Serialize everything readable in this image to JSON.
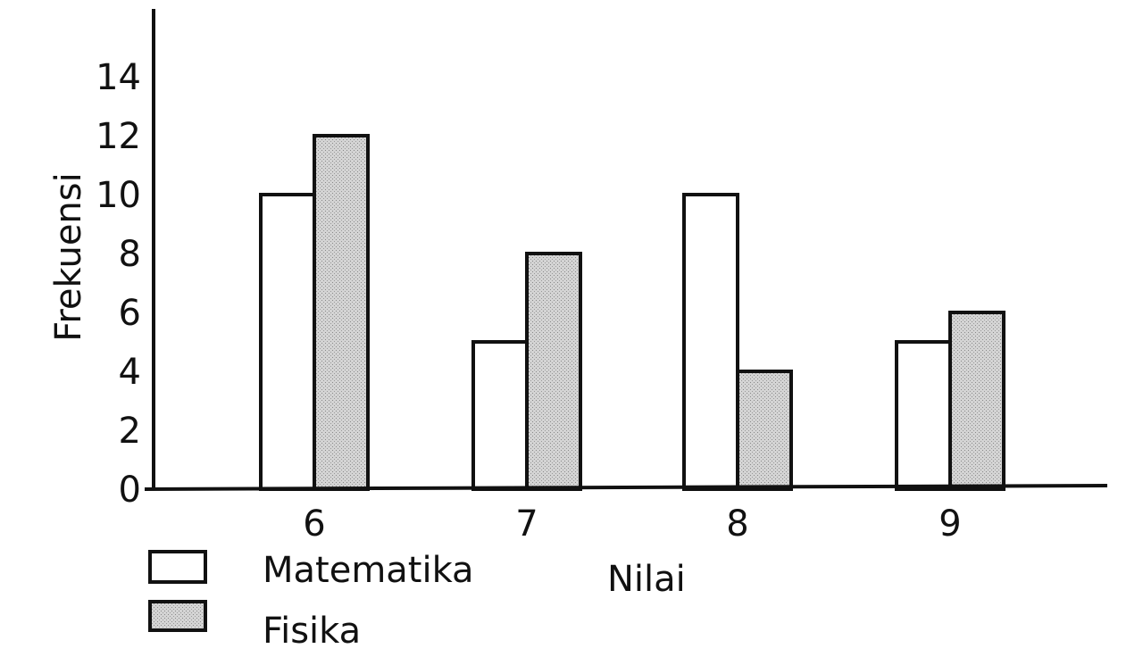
{
  "chart_data": {
    "type": "bar",
    "categories": [
      "6",
      "7",
      "8",
      "9"
    ],
    "series": [
      {
        "name": "Matematika",
        "values": [
          10,
          5,
          10,
          5
        ],
        "color": "#ffffff"
      },
      {
        "name": "Fisika",
        "values": [
          12,
          8,
          4,
          6
        ],
        "color": "#c8c8c8"
      }
    ],
    "title": "",
    "xlabel": "Nilai",
    "ylabel": "Frekuensi",
    "ylim": [
      0,
      14
    ],
    "yticks": [
      "0",
      "2",
      "4",
      "6",
      "8",
      "10",
      "12",
      "14"
    ],
    "grid": false,
    "legend_position": "bottom-left"
  }
}
